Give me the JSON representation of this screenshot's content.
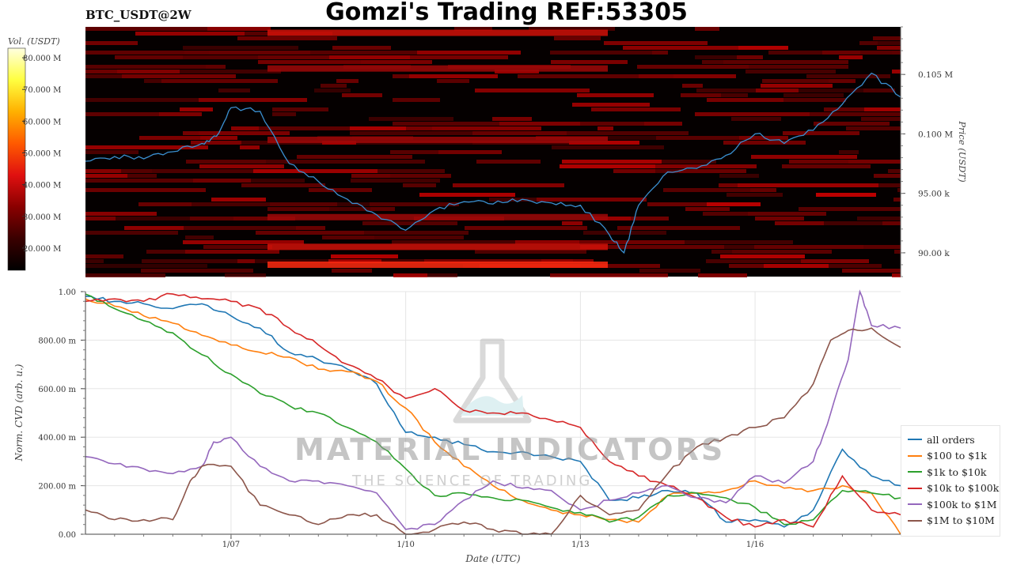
{
  "header": {
    "symbol": "BTC_USDT@2W",
    "title": "Gomzi's Trading REF:53305"
  },
  "watermark": {
    "name": "MATERIAL INDICATORS",
    "tagline": "THE SCIENCE OF TRADING"
  },
  "colorbar": {
    "label": "Vol. (USDT)",
    "ticks": [
      "20.000 M",
      "30.000 M",
      "40.000 M",
      "50.000 M",
      "60.000 M",
      "70.000 M",
      "80.000 M"
    ],
    "colors": [
      "#000000",
      "#3a0000",
      "#8a0000",
      "#e01010",
      "#ff5a00",
      "#ffb000",
      "#ffff40",
      "#ffffe0"
    ]
  },
  "chart_data": [
    {
      "type": "heatmap",
      "title": "BTC_USDT@2W",
      "ylabel": "Price (USDT)",
      "price_ticks": [
        {
          "value": 90000,
          "label": "90.00 k"
        },
        {
          "value": 95000,
          "label": "95.00 k"
        },
        {
          "value": 100000,
          "label": "0.100 M"
        },
        {
          "value": 105000,
          "label": "0.105 M"
        }
      ],
      "ylim": [
        88000,
        109000
      ],
      "price_series": {
        "x": [
          "01/04 12:00",
          "01/05 00:00",
          "01/05 12:00",
          "01/06 00:00",
          "01/06 12:00",
          "01/06 18:00",
          "01/07 00:00",
          "01/07 12:00",
          "01/08 00:00",
          "01/08 12:00",
          "01/09 00:00",
          "01/09 12:00",
          "01/10 00:00",
          "01/10 12:00",
          "01/11 00:00",
          "01/11 12:00",
          "01/12 00:00",
          "01/12 12:00",
          "01/13 00:00",
          "01/13 12:00",
          "01/13 18:00",
          "01/14 00:00",
          "01/14 12:00",
          "01/15 00:00",
          "01/15 12:00",
          "01/16 00:00",
          "01/16 12:00",
          "01/17 00:00",
          "01/17 12:00",
          "01/18 00:00",
          "01/18 12:00"
        ],
        "y": [
          97700,
          98100,
          97900,
          98500,
          99200,
          99800,
          102200,
          101900,
          97500,
          96000,
          94500,
          93200,
          91900,
          93600,
          94300,
          94100,
          94500,
          94200,
          94000,
          91500,
          90000,
          94000,
          96800,
          97100,
          98200,
          100000,
          99200,
          100300,
          102500,
          105100,
          103100
        ]
      },
      "volume_bands": [
        {
          "price": 90500,
          "volume_m": 55
        },
        {
          "price": 89000,
          "volume_m": 62
        },
        {
          "price": 93000,
          "volume_m": 38
        },
        {
          "price": 99500,
          "volume_m": 42
        },
        {
          "price": 105500,
          "volume_m": 45
        },
        {
          "price": 108500,
          "volume_m": 48
        }
      ]
    },
    {
      "type": "line",
      "xlabel": "Date (UTC)",
      "ylabel": "Norm. CVD (arb. u.)",
      "ylim": [
        0,
        1
      ],
      "y_ticks": [
        {
          "value": 0,
          "label": "0.00"
        },
        {
          "value": 0.2,
          "label": "200.00 m"
        },
        {
          "value": 0.4,
          "label": "400.00 m"
        },
        {
          "value": 0.6,
          "label": "600.00 m"
        },
        {
          "value": 0.8,
          "label": "800.00 m"
        },
        {
          "value": 1,
          "label": "1.00"
        }
      ],
      "x_ticks": [
        "1/07",
        "1/10",
        "1/13",
        "1/16"
      ],
      "x_range": [
        "01/04 12:00",
        "01/18 12:00"
      ],
      "legend_position": "bottom-right",
      "series": [
        {
          "name": "all orders",
          "color": "#1f77b4",
          "x": [
            4.5,
            5.0,
            5.5,
            6.0,
            6.5,
            7.0,
            7.5,
            8.0,
            8.5,
            9.0,
            9.5,
            10.0,
            10.5,
            11.0,
            11.5,
            12.0,
            12.5,
            13.0,
            13.5,
            14.0,
            14.5,
            15.0,
            15.5,
            16.0,
            16.5,
            17.0,
            17.5,
            18.0,
            18.5
          ],
          "y": [
            0.98,
            0.96,
            0.95,
            0.93,
            0.95,
            0.9,
            0.85,
            0.75,
            0.72,
            0.68,
            0.62,
            0.42,
            0.4,
            0.37,
            0.34,
            0.34,
            0.32,
            0.3,
            0.14,
            0.15,
            0.18,
            0.17,
            0.05,
            0.06,
            0.03,
            0.1,
            0.35,
            0.24,
            0.2
          ]
        },
        {
          "name": "$100 to $1k",
          "color": "#ff7f0e",
          "x": [
            4.5,
            5.0,
            5.5,
            6.0,
            6.5,
            7.0,
            7.5,
            8.0,
            8.5,
            9.0,
            9.5,
            10.0,
            10.5,
            11.0,
            11.5,
            12.0,
            12.5,
            13.0,
            13.5,
            14.0,
            14.5,
            15.0,
            15.5,
            16.0,
            16.5,
            17.0,
            17.5,
            18.0,
            18.5
          ],
          "y": [
            0.97,
            0.94,
            0.9,
            0.87,
            0.82,
            0.78,
            0.75,
            0.73,
            0.68,
            0.67,
            0.63,
            0.52,
            0.38,
            0.28,
            0.2,
            0.14,
            0.1,
            0.08,
            0.06,
            0.05,
            0.16,
            0.17,
            0.18,
            0.22,
            0.19,
            0.18,
            0.2,
            0.17,
            0.0
          ]
        },
        {
          "name": "$1k to $10k",
          "color": "#2ca02c",
          "x": [
            4.5,
            5.0,
            5.5,
            6.0,
            6.5,
            7.0,
            7.5,
            8.0,
            8.5,
            9.0,
            9.5,
            10.0,
            10.5,
            11.0,
            11.5,
            12.0,
            12.5,
            13.0,
            13.5,
            14.0,
            14.5,
            15.0,
            15.5,
            16.0,
            16.5,
            17.0,
            17.5,
            18.0,
            18.5
          ],
          "y": [
            0.99,
            0.93,
            0.88,
            0.83,
            0.74,
            0.66,
            0.58,
            0.53,
            0.5,
            0.44,
            0.38,
            0.27,
            0.16,
            0.17,
            0.15,
            0.14,
            0.11,
            0.09,
            0.05,
            0.07,
            0.16,
            0.17,
            0.15,
            0.11,
            0.04,
            0.06,
            0.18,
            0.17,
            0.15
          ]
        },
        {
          "name": "$10k to $100k",
          "color": "#d62728",
          "x": [
            4.5,
            5.0,
            5.5,
            6.0,
            6.5,
            7.0,
            7.5,
            8.0,
            8.5,
            9.0,
            9.5,
            10.0,
            10.5,
            11.0,
            11.5,
            12.0,
            12.5,
            13.0,
            13.5,
            14.0,
            14.5,
            15.0,
            15.5,
            16.0,
            16.5,
            17.0,
            17.5,
            18.0,
            18.5
          ],
          "y": [
            0.96,
            0.97,
            0.96,
            0.99,
            0.97,
            0.96,
            0.93,
            0.85,
            0.78,
            0.7,
            0.64,
            0.56,
            0.6,
            0.51,
            0.5,
            0.5,
            0.47,
            0.44,
            0.3,
            0.24,
            0.2,
            0.15,
            0.07,
            0.03,
            0.06,
            0.03,
            0.24,
            0.1,
            0.08
          ]
        },
        {
          "name": "$100k to $1M",
          "color": "#9467bd",
          "x": [
            4.5,
            5.0,
            5.5,
            6.0,
            6.5,
            6.7,
            7.0,
            7.5,
            8.0,
            8.5,
            9.0,
            9.5,
            10.0,
            10.5,
            11.0,
            11.5,
            12.0,
            12.5,
            13.0,
            13.5,
            14.0,
            14.5,
            15.0,
            15.5,
            16.0,
            16.5,
            17.0,
            17.3,
            17.6,
            17.8,
            18.0,
            18.5
          ],
          "y": [
            0.32,
            0.29,
            0.27,
            0.25,
            0.28,
            0.38,
            0.4,
            0.28,
            0.22,
            0.22,
            0.2,
            0.17,
            0.02,
            0.04,
            0.14,
            0.22,
            0.19,
            0.18,
            0.1,
            0.14,
            0.17,
            0.2,
            0.15,
            0.13,
            0.24,
            0.21,
            0.3,
            0.5,
            0.72,
            1.0,
            0.86,
            0.85
          ]
        },
        {
          "name": "$1M to $10M",
          "color": "#8c564b",
          "x": [
            4.5,
            5.0,
            5.5,
            6.0,
            6.3,
            6.5,
            7.0,
            7.5,
            8.0,
            8.5,
            9.0,
            9.5,
            10.0,
            10.5,
            11.0,
            11.5,
            12.0,
            12.5,
            13.0,
            13.5,
            14.0,
            14.5,
            15.0,
            15.5,
            16.0,
            16.5,
            17.0,
            17.3,
            17.6,
            18.0,
            18.5
          ],
          "y": [
            0.1,
            0.06,
            0.06,
            0.06,
            0.22,
            0.28,
            0.28,
            0.12,
            0.08,
            0.04,
            0.08,
            0.08,
            0.0,
            0.02,
            0.05,
            0.02,
            0.0,
            0.0,
            0.16,
            0.08,
            0.1,
            0.25,
            0.36,
            0.4,
            0.44,
            0.48,
            0.62,
            0.8,
            0.84,
            0.85,
            0.77
          ]
        }
      ]
    }
  ]
}
